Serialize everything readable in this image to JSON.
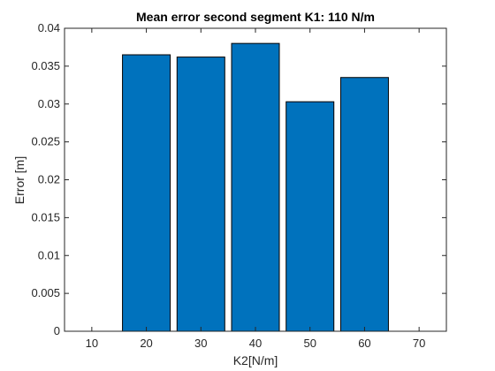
{
  "chart_data": {
    "type": "bar",
    "title": "Mean error second segment K1: 110 N/m",
    "xlabel": "K2[N/m]",
    "ylabel": "Error [m]",
    "x": [
      20,
      30,
      40,
      50,
      60
    ],
    "values": [
      0.0365,
      0.0362,
      0.038,
      0.0303,
      0.0335
    ],
    "xlim": [
      5,
      75
    ],
    "ylim": [
      0,
      0.04
    ],
    "xticks": [
      10,
      20,
      30,
      40,
      50,
      60,
      70
    ],
    "yticks": [
      0,
      0.005,
      0.01,
      0.015,
      0.02,
      0.025,
      0.03,
      0.035,
      0.04
    ],
    "xtick_labels": [
      "10",
      "20",
      "30",
      "40",
      "50",
      "60",
      "70"
    ],
    "ytick_labels": [
      "0",
      "0.005",
      "0.01",
      "0.015",
      "0.02",
      "0.025",
      "0.03",
      "0.035",
      "0.04"
    ],
    "bar_color": "#0072BD",
    "grid": false,
    "legend": "none"
  }
}
